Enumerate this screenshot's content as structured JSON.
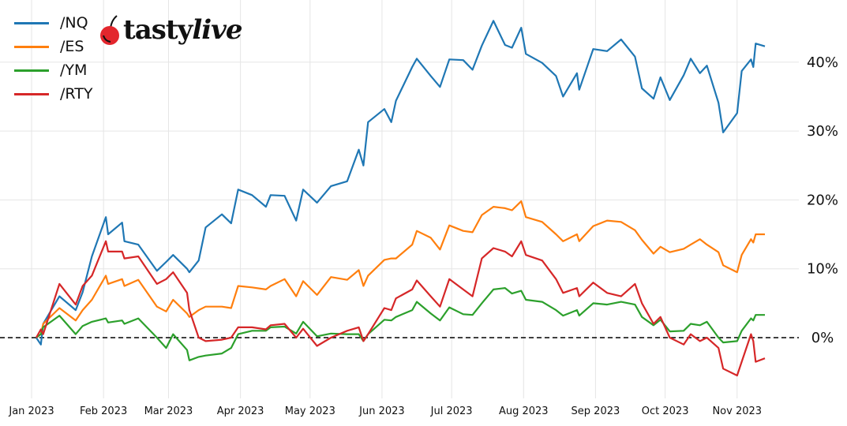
{
  "logo": {
    "text": "tastylive",
    "part1": "tasty",
    "part2": "live",
    "cherry_color": "#e3262d"
  },
  "chart_data": {
    "type": "line",
    "title": "",
    "xlabel": "",
    "ylabel": "",
    "ylim": [
      -10,
      48
    ],
    "grid": true,
    "legend_position": "top-left",
    "y_axis_side": "right",
    "reference_line": {
      "value": 0,
      "style": "dashed",
      "color": "#000000"
    },
    "x_ticks": [
      "Jan 2023",
      "Feb 2023",
      "Mar 2023",
      "Apr 2023",
      "May 2023",
      "Jun 2023",
      "Jul 2023",
      "Aug 2023",
      "Sep 2023",
      "Oct 2023",
      "Nov 2023"
    ],
    "x_tick_dates": [
      "2023-01-01",
      "2023-02-01",
      "2023-03-01",
      "2023-04-01",
      "2023-05-01",
      "2023-06-01",
      "2023-07-01",
      "2023-08-01",
      "2023-09-01",
      "2023-10-01",
      "2023-11-01"
    ],
    "y_ticks": [
      0,
      10,
      20,
      30,
      40
    ],
    "y_tick_labels": [
      "0%",
      "10%",
      "20%",
      "30%",
      "40%"
    ],
    "x": [
      "2023-01-03",
      "2023-01-05",
      "2023-01-06",
      "2023-01-13",
      "2023-01-20",
      "2023-01-23",
      "2023-01-27",
      "2023-02-02",
      "2023-02-03",
      "2023-02-09",
      "2023-02-10",
      "2023-02-16",
      "2023-02-24",
      "2023-02-28",
      "2023-03-03",
      "2023-03-09",
      "2023-03-10",
      "2023-03-14",
      "2023-03-17",
      "2023-03-24",
      "2023-03-28",
      "2023-03-31",
      "2023-04-06",
      "2023-04-12",
      "2023-04-14",
      "2023-04-20",
      "2023-04-25",
      "2023-04-28",
      "2023-05-04",
      "2023-05-10",
      "2023-05-17",
      "2023-05-22",
      "2023-05-24",
      "2023-05-26",
      "2023-06-02",
      "2023-06-05",
      "2023-06-07",
      "2023-06-14",
      "2023-06-16",
      "2023-06-22",
      "2023-06-26",
      "2023-06-30",
      "2023-07-06",
      "2023-07-10",
      "2023-07-14",
      "2023-07-19",
      "2023-07-24",
      "2023-07-27",
      "2023-07-31",
      "2023-08-02",
      "2023-08-09",
      "2023-08-15",
      "2023-08-18",
      "2023-08-24",
      "2023-08-25",
      "2023-08-31",
      "2023-09-06",
      "2023-09-12",
      "2023-09-18",
      "2023-09-21",
      "2023-09-26",
      "2023-09-29",
      "2023-10-03",
      "2023-10-09",
      "2023-10-12",
      "2023-10-16",
      "2023-10-19",
      "2023-10-24",
      "2023-10-26",
      "2023-11-01",
      "2023-11-03",
      "2023-11-07",
      "2023-11-08",
      "2023-11-09",
      "2023-11-13"
    ],
    "series": [
      {
        "name": "/NQ",
        "color": "#1f77b4",
        "values": [
          0,
          -1,
          2,
          6,
          4,
          6.6,
          11.8,
          17.5,
          15,
          16.7,
          14,
          13.5,
          9.7,
          11,
          12,
          10,
          9.5,
          11.2,
          16,
          17.9,
          16.6,
          21.5,
          20.7,
          19,
          20.7,
          20.6,
          17,
          21.5,
          19.6,
          22,
          22.7,
          27.3,
          25,
          31.3,
          33.2,
          31.3,
          34.4,
          39.3,
          40.5,
          38,
          36.4,
          40.4,
          40.3,
          38.9,
          42.4,
          46,
          42.5,
          42.1,
          45,
          41.2,
          39.9,
          38,
          35,
          38.4,
          36,
          41.9,
          41.6,
          43.3,
          40.8,
          36.2,
          34.7,
          37.8,
          34.5,
          38.1,
          40.5,
          38.4,
          39.5,
          34.1,
          29.8,
          32.6,
          38.7,
          40.4,
          39.3,
          42.7,
          42.3
        ]
      },
      {
        "name": "/ES",
        "color": "#ff7f0e",
        "values": [
          0,
          0.5,
          2,
          4.3,
          2.5,
          4,
          5.5,
          9,
          7.8,
          8.5,
          7.5,
          8.4,
          4.5,
          3.8,
          5.5,
          3.5,
          3,
          4,
          4.5,
          4.5,
          4.3,
          7.5,
          7.3,
          7,
          7.5,
          8.5,
          6,
          8.2,
          6.2,
          8.8,
          8.4,
          9.8,
          7.5,
          9,
          11.3,
          11.5,
          11.5,
          13.5,
          15.5,
          14.5,
          12.8,
          16.3,
          15.5,
          15.3,
          17.8,
          19,
          18.8,
          18.5,
          19.8,
          17.5,
          16.8,
          15,
          14,
          15,
          14,
          16.2,
          17,
          16.8,
          15.6,
          14.2,
          12.2,
          13.2,
          12.4,
          12.9,
          13.5,
          14.3,
          13.5,
          12.4,
          10.5,
          9.5,
          12,
          14.3,
          13.8,
          15,
          15
        ]
      },
      {
        "name": "/YM",
        "color": "#2ca02c",
        "values": [
          0,
          0.5,
          1.5,
          3.2,
          0.5,
          1.7,
          2.3,
          2.8,
          2.2,
          2.5,
          2,
          2.8,
          0,
          -1.5,
          0.5,
          -1.8,
          -3.3,
          -2.8,
          -2.6,
          -2.3,
          -1.5,
          0.5,
          1,
          1,
          1.5,
          1.6,
          0.6,
          2.3,
          0.2,
          0.6,
          0.5,
          0.5,
          -0.5,
          0.5,
          2.6,
          2.5,
          3,
          4,
          5.2,
          3.5,
          2.5,
          4.4,
          3.4,
          3.3,
          5,
          7,
          7.2,
          6.4,
          6.8,
          5.5,
          5.2,
          4,
          3.2,
          4,
          3.2,
          5,
          4.8,
          5.2,
          4.8,
          3,
          1.8,
          2.6,
          0.9,
          1,
          2,
          1.8,
          2.3,
          0,
          -0.7,
          -0.5,
          1,
          2.8,
          2.5,
          3.3,
          3.3
        ]
      },
      {
        "name": "/RTY",
        "color": "#d62728",
        "values": [
          0,
          1.2,
          0.5,
          7.8,
          4.8,
          7.5,
          9,
          14,
          12.5,
          12.5,
          11.5,
          11.8,
          7.8,
          8.5,
          9.5,
          6.5,
          4,
          0,
          -0.5,
          -0.3,
          0,
          1.5,
          1.5,
          1.2,
          1.8,
          2,
          0,
          1.3,
          -1.2,
          0,
          1,
          1.5,
          -0.5,
          0.5,
          4.3,
          4,
          5.7,
          7,
          8.3,
          6,
          4.5,
          8.5,
          7,
          6,
          11.5,
          13,
          12.5,
          11.8,
          14,
          12,
          11.2,
          8.5,
          6.5,
          7.2,
          6,
          8,
          6.5,
          6,
          7.8,
          5,
          2,
          3,
          0,
          -1,
          0.5,
          -0.5,
          0,
          -1.5,
          -4.5,
          -5.5,
          -3.5,
          0.5,
          -0.5,
          -3.5,
          -3
        ]
      }
    ]
  }
}
